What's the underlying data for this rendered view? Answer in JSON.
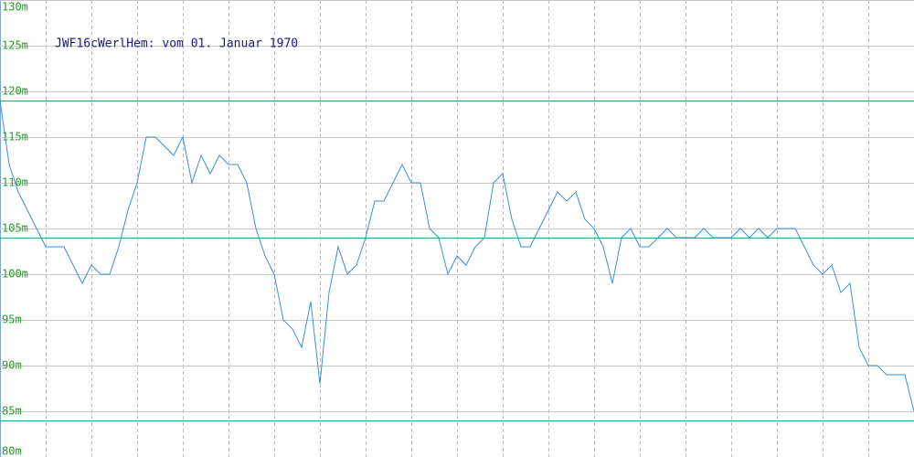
{
  "chart_data": {
    "type": "line",
    "title": "JWF16cWerlHem: vom 01. Januar 1970",
    "ylim": [
      80,
      130
    ],
    "yticks": [
      {
        "value": 80,
        "label": "80m"
      },
      {
        "value": 85,
        "label": "85m"
      },
      {
        "value": 90,
        "label": "90m"
      },
      {
        "value": 95,
        "label": "95m"
      },
      {
        "value": 100,
        "label": "100m"
      },
      {
        "value": 105,
        "label": "105m"
      },
      {
        "value": 110,
        "label": "110m"
      },
      {
        "value": 115,
        "label": "115m"
      },
      {
        "value": 120,
        "label": "120m"
      },
      {
        "value": 125,
        "label": "125m"
      },
      {
        "value": 130,
        "label": "130m"
      }
    ],
    "grid": true,
    "color": "#3a8fd8",
    "reference_lines": [
      {
        "value": 119,
        "color": "#4a9a4a"
      },
      {
        "value": 104,
        "color": "#4a9a6a"
      },
      {
        "value": 84,
        "color": "#2a9a9a"
      }
    ],
    "values": [
      119,
      112,
      109,
      107,
      105,
      103,
      103,
      103,
      101,
      99,
      101,
      100,
      100,
      103,
      107,
      110,
      115,
      115,
      114,
      113,
      115,
      110,
      113,
      111,
      113,
      112,
      112,
      110,
      105,
      102,
      100,
      95,
      94,
      92,
      97,
      88,
      98,
      103,
      100,
      101,
      104,
      108,
      108,
      110,
      112,
      110,
      110,
      105,
      104,
      100,
      102,
      101,
      103,
      104,
      110,
      111,
      106,
      103,
      103,
      105,
      107,
      109,
      108,
      109,
      106,
      105,
      103,
      99,
      104,
      105,
      103,
      103,
      104,
      105,
      104,
      104,
      104,
      105,
      104,
      104,
      104,
      105,
      104,
      105,
      104,
      105,
      105,
      105,
      103,
      101,
      100,
      101,
      98,
      99,
      92,
      90,
      90,
      89,
      89,
      89,
      85
    ]
  }
}
